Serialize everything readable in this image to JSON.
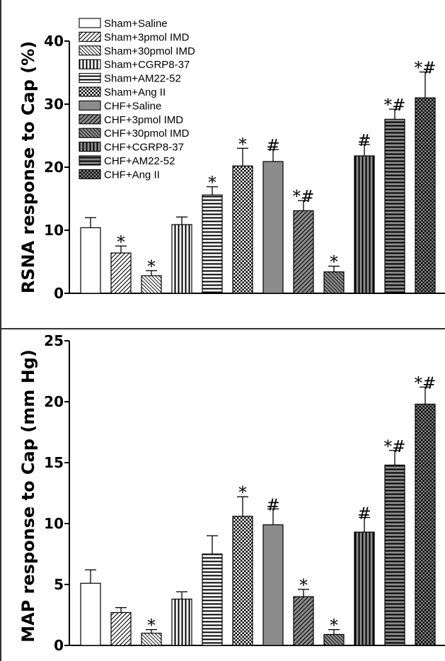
{
  "chart_data": [
    {
      "type": "bar",
      "ylabel": "RSNA response to Cap (%)",
      "ylim": [
        0,
        40
      ],
      "yticks": [
        0,
        10,
        20,
        30,
        40
      ],
      "grid": false,
      "legend_position": "top-left",
      "categories": [
        "Sham+Saline",
        "Sham+3pmol IMD",
        "Sham+30pmol IMD",
        "Sham+CGRP8-37",
        "Sham+AM22-52",
        "Sham+Ang II",
        "CHF+Saline",
        "CHF+3pmol IMD",
        "CHF+30pmol IMD",
        "CHF+CGRP8-37",
        "CHF+AM22-52",
        "CHF+Ang II"
      ],
      "values": [
        10.4,
        6.4,
        2.8,
        10.9,
        15.6,
        20.2,
        20.9,
        13.1,
        3.4,
        21.8,
        27.6,
        31.0
      ],
      "errors": [
        1.6,
        1.1,
        0.8,
        1.2,
        1.3,
        2.8,
        1.9,
        1.6,
        0.9,
        1.8,
        1.6,
        4.1
      ],
      "annotations": [
        "",
        "*",
        "*",
        "",
        "*",
        "*",
        "#",
        "*#",
        "*",
        "#",
        "*#",
        "*#"
      ]
    },
    {
      "type": "bar",
      "ylabel": "MAP response to Cap (mm Hg)",
      "ylim": [
        0,
        25
      ],
      "yticks": [
        0,
        5,
        10,
        15,
        20,
        25
      ],
      "grid": false,
      "categories": [
        "Sham+Saline",
        "Sham+3pmol IMD",
        "Sham+30pmol IMD",
        "Sham+CGRP8-37",
        "Sham+AM22-52",
        "Sham+Ang II",
        "CHF+Saline",
        "CHF+3pmol IMD",
        "CHF+30pmol IMD",
        "CHF+CGRP8-37",
        "CHF+AM22-52",
        "CHF+Ang II"
      ],
      "values": [
        5.1,
        2.7,
        1.0,
        3.8,
        7.5,
        10.6,
        9.9,
        4.0,
        0.9,
        9.3,
        14.8,
        19.8
      ],
      "errors": [
        1.1,
        0.4,
        0.3,
        0.6,
        1.5,
        1.6,
        1.3,
        0.6,
        0.4,
        1.2,
        1.2,
        1.4
      ],
      "annotations": [
        "",
        "",
        "*",
        "",
        "",
        "*",
        "#",
        "*",
        "*",
        "#",
        "*#",
        "*#"
      ]
    }
  ],
  "legend": {
    "entries": [
      "Sham+Saline",
      "Sham+3pmol IMD",
      "Sham+30pmol IMD",
      "Sham+CGRP8-37",
      "Sham+AM22-52",
      "Sham+Ang II",
      "CHF+Saline",
      "CHF+3pmol IMD",
      "CHF+30pmol IMD",
      "CHF+CGRP8-37",
      "CHF+AM22-52",
      "CHF+Ang II"
    ]
  },
  "colors": {
    "sham_fill": "#ffffff",
    "chf_fill": "#8c8c8c",
    "stroke": "#000000",
    "divider": "#333333"
  }
}
